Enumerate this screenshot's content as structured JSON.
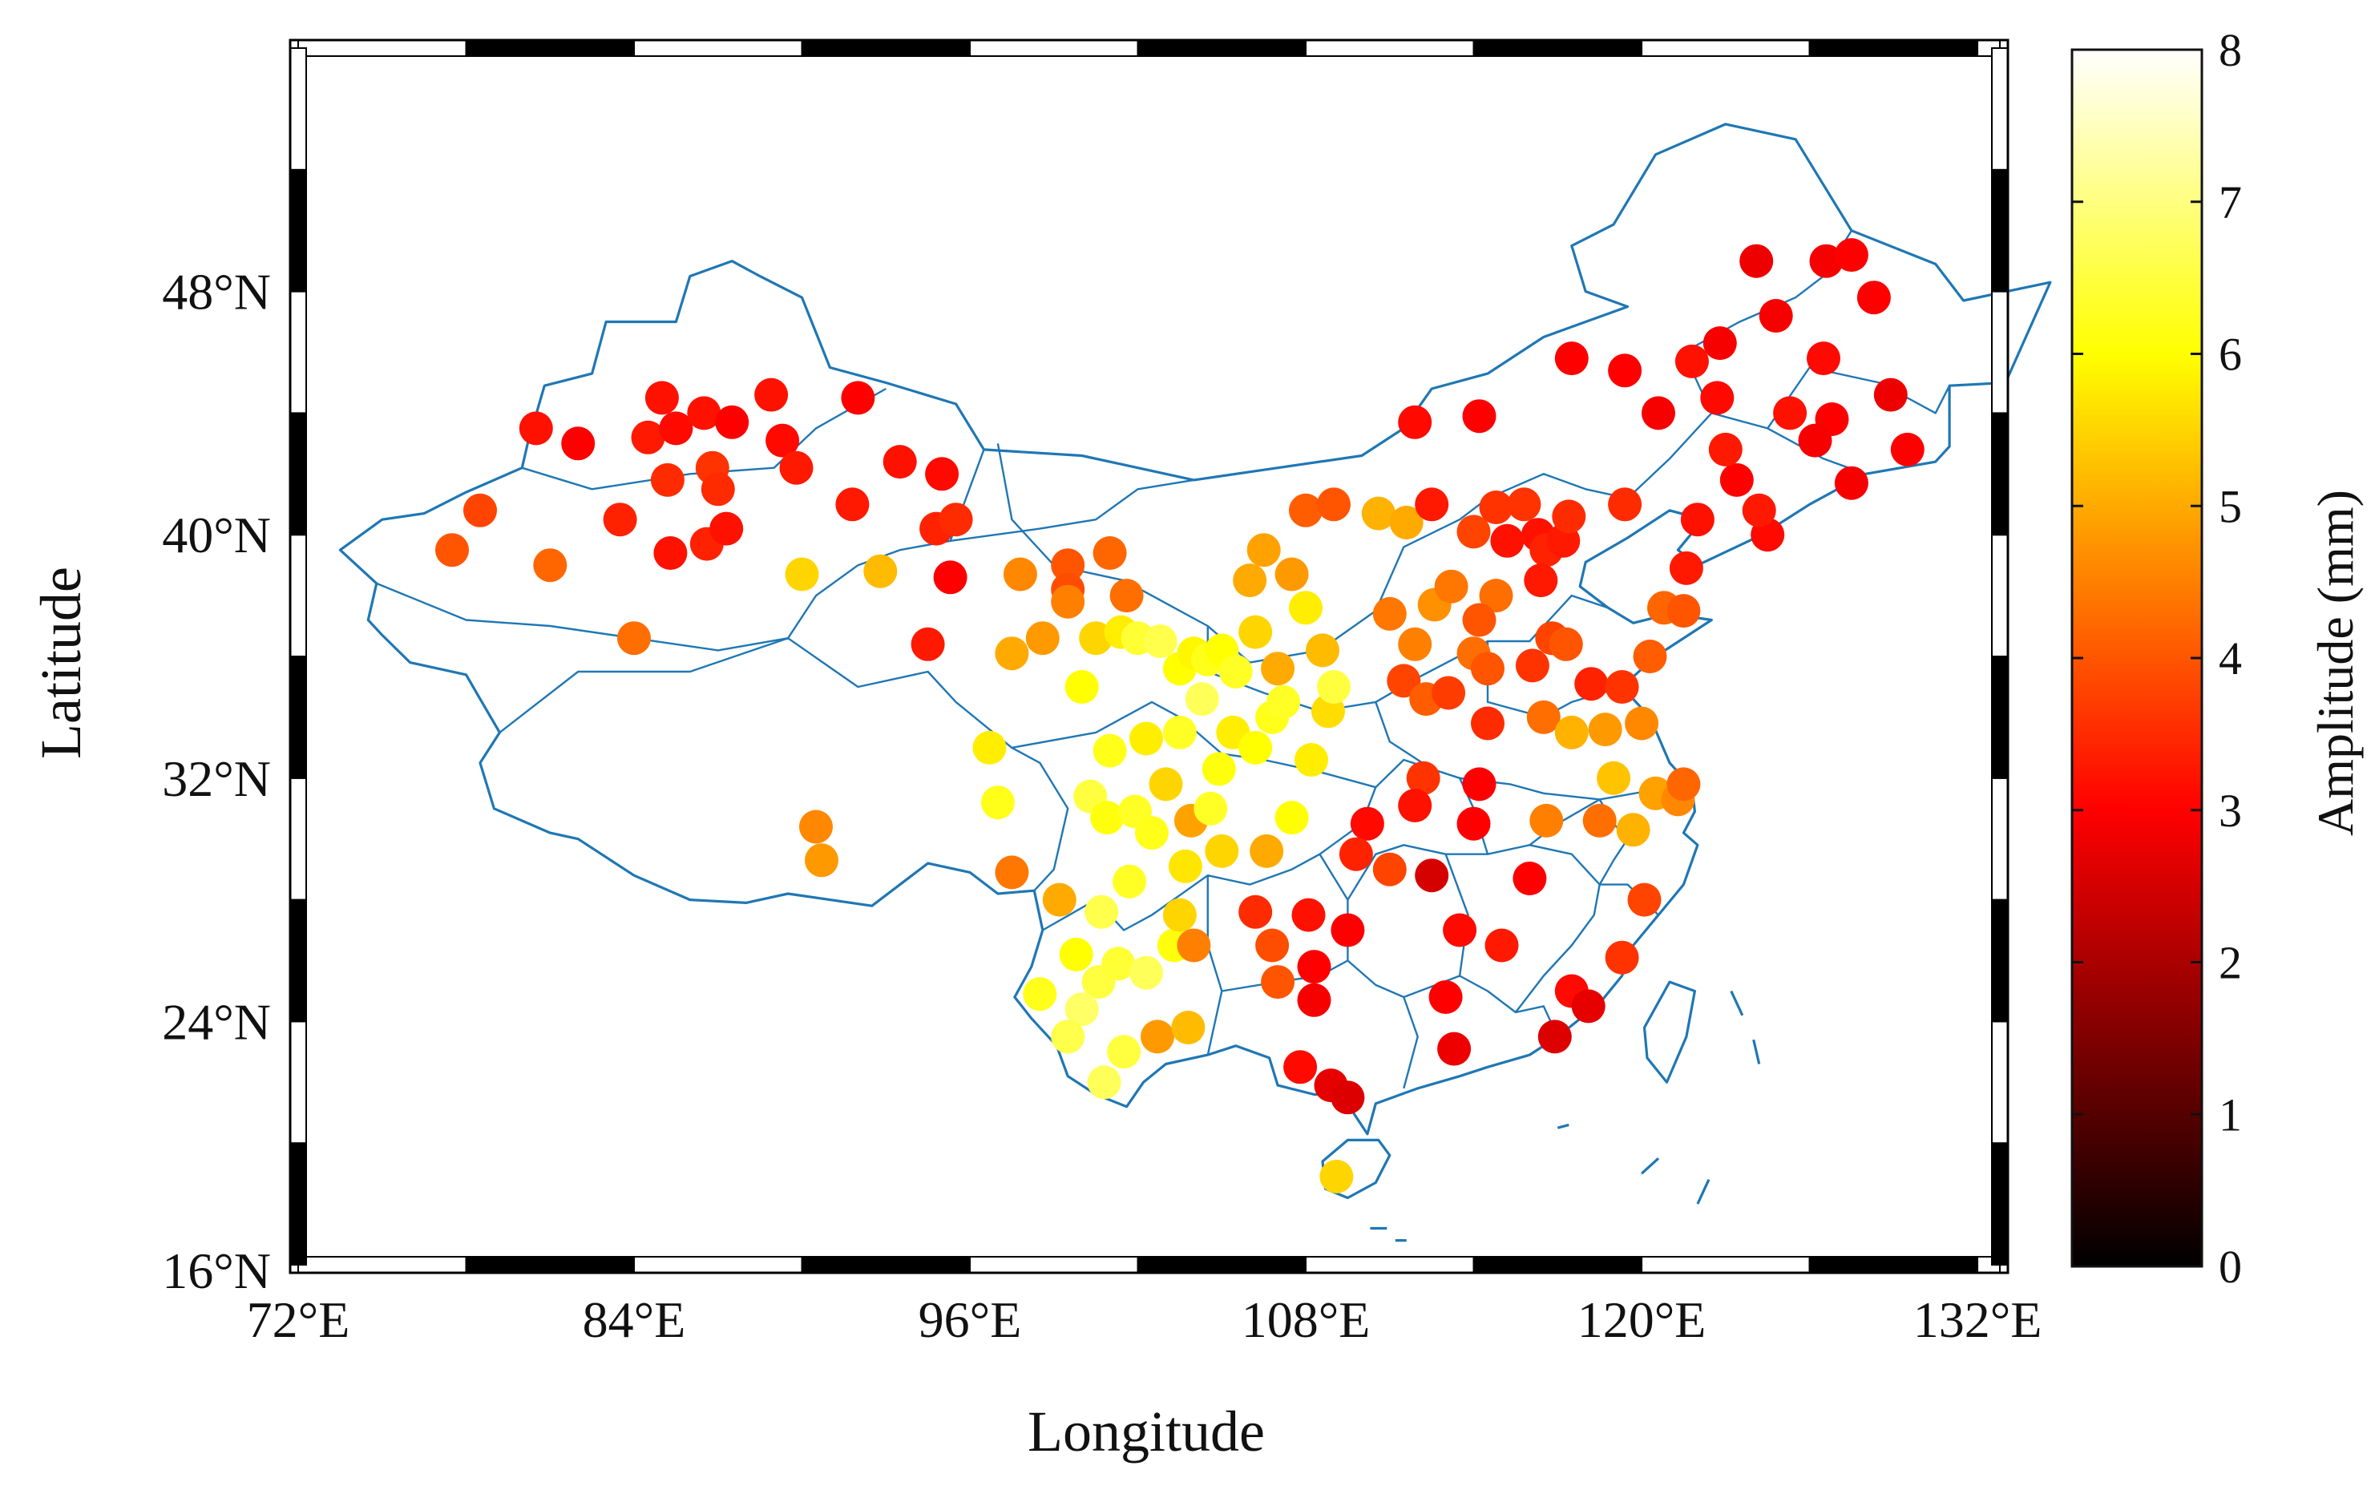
{
  "figure": {
    "xlabel": "Longitude",
    "ylabel": "Latitude",
    "colorbar_label": "Amplitude (mm)"
  },
  "map": {
    "lon_range": [
      72,
      136
    ],
    "lat_range": [
      16,
      56
    ],
    "lon_ticks": [
      {
        "value": 72,
        "label": "72°E"
      },
      {
        "value": 84,
        "label": "84°E"
      },
      {
        "value": 96,
        "label": "96°E"
      },
      {
        "value": 108,
        "label": "108°E"
      },
      {
        "value": 120,
        "label": "120°E"
      },
      {
        "value": 132,
        "label": "132°E"
      }
    ],
    "lat_ticks": [
      {
        "value": 16,
        "label": "16°N"
      },
      {
        "value": 24,
        "label": "24°N"
      },
      {
        "value": 32,
        "label": "32°N"
      },
      {
        "value": 40,
        "label": "40°N"
      },
      {
        "value": 48,
        "label": "48°N"
      }
    ],
    "border_color": "#1f77b4",
    "frame_style": "alternating black/white graduated border"
  },
  "colorbar": {
    "min": 0,
    "max": 8,
    "ticks": [
      {
        "value": 0,
        "label": "0"
      },
      {
        "value": 1,
        "label": "1"
      },
      {
        "value": 2,
        "label": "2"
      },
      {
        "value": 3,
        "label": "3"
      },
      {
        "value": 4,
        "label": "4"
      },
      {
        "value": 5,
        "label": "5"
      },
      {
        "value": 6,
        "label": "6"
      },
      {
        "value": 7,
        "label": "7"
      },
      {
        "value": 8,
        "label": "8"
      }
    ],
    "colormap": "hot (black-red-yellow-white)"
  },
  "chart_data": {
    "type": "scatter",
    "xlabel": "Longitude",
    "ylabel": "Latitude",
    "xlim": [
      72,
      136
    ],
    "ylim": [
      16,
      56
    ],
    "value_label": "Amplitude (mm)",
    "points": [
      [
        80.5,
        43.5,
        3.2
      ],
      [
        78.5,
        40.8,
        3.8
      ],
      [
        77.5,
        39.5,
        4.0
      ],
      [
        82.0,
        43.0,
        3.0
      ],
      [
        85.0,
        44.5,
        3.2
      ],
      [
        84.5,
        43.2,
        3.3
      ],
      [
        85.2,
        41.8,
        3.5
      ],
      [
        85.5,
        43.5,
        3.1
      ],
      [
        86.5,
        44.0,
        3.2
      ],
      [
        87.5,
        43.7,
        3.0
      ],
      [
        86.8,
        42.2,
        3.6
      ],
      [
        87.0,
        41.5,
        3.5
      ],
      [
        83.5,
        40.5,
        3.4
      ],
      [
        85.3,
        39.4,
        3.2
      ],
      [
        86.6,
        39.7,
        3.4
      ],
      [
        87.3,
        40.2,
        3.2
      ],
      [
        81.0,
        39.0,
        4.2
      ],
      [
        84.0,
        36.6,
        4.3
      ],
      [
        88.9,
        44.6,
        3.2
      ],
      [
        89.3,
        43.1,
        3.1
      ],
      [
        89.8,
        42.2,
        3.3
      ],
      [
        92.0,
        44.5,
        3.0
      ],
      [
        91.8,
        41.0,
        3.3
      ],
      [
        93.5,
        42.4,
        3.2
      ],
      [
        95.0,
        42.0,
        3.1
      ],
      [
        95.3,
        38.6,
        3.0
      ],
      [
        94.8,
        40.2,
        3.4
      ],
      [
        95.5,
        40.5,
        3.5
      ],
      [
        90.0,
        38.7,
        5.5
      ],
      [
        92.8,
        38.8,
        5.2
      ],
      [
        97.8,
        38.7,
        4.6
      ],
      [
        99.5,
        39.0,
        4.0
      ],
      [
        99.5,
        38.2,
        3.9
      ],
      [
        101.0,
        39.4,
        4.2
      ],
      [
        101.6,
        38.0,
        4.3
      ],
      [
        99.5,
        37.8,
        4.5
      ],
      [
        98.6,
        36.6,
        4.8
      ],
      [
        97.5,
        36.1,
        5.0
      ],
      [
        94.5,
        36.4,
        3.3
      ],
      [
        90.5,
        30.4,
        4.6
      ],
      [
        90.7,
        29.3,
        4.8
      ],
      [
        96.7,
        33.0,
        5.8
      ],
      [
        97.0,
        31.2,
        6.2
      ],
      [
        97.5,
        28.9,
        4.4
      ],
      [
        100.0,
        35.0,
        6.0
      ],
      [
        100.5,
        36.6,
        5.5
      ],
      [
        101.4,
        36.8,
        5.8
      ],
      [
        102.0,
        36.6,
        6.4
      ],
      [
        102.8,
        36.5,
        6.6
      ],
      [
        103.5,
        35.6,
        6.0
      ],
      [
        104.0,
        36.1,
        5.9
      ],
      [
        104.5,
        35.9,
        6.2
      ],
      [
        105.0,
        36.2,
        6.0
      ],
      [
        105.5,
        35.5,
        6.3
      ],
      [
        104.3,
        34.6,
        6.7
      ],
      [
        103.5,
        33.5,
        6.3
      ],
      [
        102.3,
        33.3,
        5.8
      ],
      [
        101.0,
        32.9,
        6.2
      ],
      [
        100.3,
        31.4,
        6.5
      ],
      [
        100.9,
        30.7,
        6.1
      ],
      [
        101.9,
        30.9,
        6.3
      ],
      [
        102.5,
        30.2,
        6.2
      ],
      [
        103.0,
        31.8,
        5.5
      ],
      [
        103.9,
        30.6,
        4.9
      ],
      [
        104.6,
        31.0,
        6.3
      ],
      [
        104.9,
        32.3,
        6.1
      ],
      [
        105.4,
        33.5,
        5.8
      ],
      [
        106.2,
        33.0,
        6.0
      ],
      [
        106.8,
        34.0,
        6.2
      ],
      [
        107.2,
        34.5,
        6.3
      ],
      [
        107.0,
        35.6,
        5.0
      ],
      [
        106.2,
        36.8,
        5.5
      ],
      [
        106.0,
        38.5,
        5.0
      ],
      [
        106.5,
        39.5,
        4.9
      ],
      [
        107.5,
        38.7,
        4.8
      ],
      [
        108.0,
        40.8,
        4.1
      ],
      [
        109.0,
        41.0,
        4.0
      ],
      [
        108.0,
        37.6,
        5.8
      ],
      [
        108.8,
        34.2,
        5.6
      ],
      [
        108.6,
        36.2,
        5.2
      ],
      [
        108.2,
        32.6,
        5.8
      ],
      [
        109.0,
        35.0,
        6.5
      ],
      [
        107.5,
        30.7,
        6.0
      ],
      [
        106.6,
        29.6,
        5.0
      ],
      [
        105.0,
        29.6,
        5.5
      ],
      [
        103.7,
        29.1,
        5.7
      ],
      [
        101.7,
        28.6,
        6.3
      ],
      [
        100.7,
        27.6,
        6.6
      ],
      [
        99.2,
        28.0,
        5.0
      ],
      [
        99.8,
        26.2,
        6.0
      ],
      [
        100.6,
        25.3,
        6.5
      ],
      [
        101.3,
        25.9,
        6.4
      ],
      [
        102.3,
        25.6,
        6.7
      ],
      [
        103.3,
        26.5,
        6.1
      ],
      [
        103.5,
        27.5,
        5.5
      ],
      [
        104.0,
        26.5,
        4.5
      ],
      [
        100.0,
        24.4,
        6.8
      ],
      [
        98.5,
        24.9,
        6.2
      ],
      [
        99.5,
        23.5,
        6.6
      ],
      [
        101.5,
        23.0,
        6.5
      ],
      [
        102.7,
        23.5,
        4.8
      ],
      [
        103.8,
        23.8,
        5.2
      ],
      [
        100.8,
        22.0,
        6.7
      ],
      [
        106.2,
        27.6,
        3.5
      ],
      [
        106.8,
        26.5,
        3.9
      ],
      [
        107.0,
        25.3,
        4.0
      ],
      [
        108.1,
        27.5,
        3.2
      ],
      [
        108.3,
        25.8,
        3.0
      ],
      [
        108.3,
        24.7,
        2.9
      ],
      [
        107.8,
        22.5,
        3.1
      ],
      [
        108.9,
        21.9,
        2.7
      ],
      [
        109.5,
        21.5,
        2.6
      ],
      [
        109.1,
        18.9,
        5.5
      ],
      [
        109.5,
        27.0,
        3.0
      ],
      [
        110.2,
        30.5,
        3.1
      ],
      [
        109.8,
        29.5,
        3.4
      ],
      [
        111.0,
        29.0,
        3.8
      ],
      [
        110.6,
        40.7,
        5.1
      ],
      [
        111.6,
        40.4,
        5.0
      ],
      [
        111.0,
        37.4,
        4.4
      ],
      [
        111.9,
        36.4,
        4.5
      ],
      [
        112.6,
        37.7,
        4.7
      ],
      [
        113.2,
        38.3,
        4.4
      ],
      [
        111.5,
        35.2,
        3.8
      ],
      [
        112.3,
        34.6,
        4.1
      ],
      [
        112.2,
        32.0,
        3.6
      ],
      [
        111.9,
        31.1,
        3.2
      ],
      [
        112.5,
        28.8,
        2.5
      ],
      [
        114.0,
        30.5,
        3.0
      ],
      [
        113.0,
        24.8,
        3.0
      ],
      [
        113.5,
        27.0,
        3.1
      ],
      [
        113.3,
        23.1,
        2.8
      ],
      [
        114.0,
        36.1,
        4.3
      ],
      [
        114.5,
        35.6,
        4.0
      ],
      [
        114.8,
        38.0,
        4.3
      ],
      [
        114.2,
        37.2,
        4.0
      ],
      [
        113.1,
        34.8,
        3.7
      ],
      [
        114.5,
        33.8,
        3.5
      ],
      [
        114.0,
        40.1,
        3.8
      ],
      [
        114.8,
        40.9,
        3.6
      ],
      [
        115.2,
        39.8,
        3.2
      ],
      [
        115.8,
        41.0,
        3.6
      ],
      [
        116.3,
        40.0,
        3.2
      ],
      [
        116.6,
        39.5,
        3.4
      ],
      [
        117.2,
        39.8,
        3.3
      ],
      [
        117.4,
        40.6,
        3.5
      ],
      [
        116.4,
        38.5,
        3.3
      ],
      [
        116.1,
        35.7,
        3.6
      ],
      [
        116.8,
        36.6,
        3.8
      ],
      [
        117.3,
        36.4,
        4.0
      ],
      [
        118.2,
        35.1,
        3.4
      ],
      [
        119.3,
        35.0,
        3.6
      ],
      [
        120.3,
        36.0,
        4.1
      ],
      [
        120.8,
        37.6,
        4.2
      ],
      [
        121.5,
        37.5,
        4.0
      ],
      [
        116.5,
        34.0,
        4.3
      ],
      [
        117.5,
        33.5,
        5.1
      ],
      [
        118.7,
        33.6,
        4.8
      ],
      [
        119.0,
        32.0,
        5.3
      ],
      [
        120.0,
        33.8,
        4.6
      ],
      [
        120.5,
        31.5,
        4.9
      ],
      [
        121.3,
        31.3,
        4.6
      ],
      [
        121.5,
        31.8,
        4.2
      ],
      [
        119.7,
        30.3,
        5.1
      ],
      [
        118.5,
        30.6,
        4.3
      ],
      [
        116.6,
        30.6,
        4.5
      ],
      [
        114.2,
        31.8,
        3.0
      ],
      [
        116.0,
        28.7,
        3.0
      ],
      [
        115.0,
        26.5,
        3.3
      ],
      [
        117.5,
        25.0,
        3.1
      ],
      [
        119.3,
        26.1,
        3.6
      ],
      [
        120.1,
        28.0,
        3.8
      ],
      [
        118.1,
        24.5,
        2.7
      ],
      [
        116.9,
        23.5,
        2.6
      ],
      [
        120.6,
        44.0,
        2.9
      ],
      [
        119.4,
        41.0,
        3.5
      ],
      [
        121.6,
        38.9,
        3.3
      ],
      [
        123.4,
        41.8,
        3.0
      ],
      [
        122.0,
        40.5,
        3.2
      ],
      [
        123.0,
        42.8,
        3.3
      ],
      [
        124.5,
        40.0,
        3.1
      ],
      [
        124.2,
        40.8,
        3.3
      ],
      [
        121.8,
        45.7,
        3.2
      ],
      [
        122.7,
        44.5,
        3.1
      ],
      [
        124.8,
        47.2,
        2.9
      ],
      [
        126.5,
        45.8,
        3.1
      ],
      [
        125.3,
        44.0,
        3.2
      ],
      [
        126.8,
        43.8,
        3.0
      ],
      [
        126.2,
        43.1,
        2.9
      ],
      [
        127.5,
        41.7,
        2.9
      ],
      [
        129.5,
        42.8,
        3.0
      ],
      [
        128.9,
        44.6,
        2.8
      ],
      [
        126.6,
        49.0,
        2.9
      ],
      [
        127.5,
        49.2,
        3.0
      ],
      [
        128.3,
        47.8,
        3.0
      ],
      [
        124.1,
        49.0,
        2.8
      ],
      [
        122.8,
        46.3,
        2.9
      ],
      [
        119.4,
        45.4,
        3.0
      ],
      [
        117.5,
        45.8,
        3.0
      ],
      [
        114.2,
        43.9,
        3.0
      ],
      [
        111.9,
        43.7,
        3.1
      ],
      [
        112.5,
        41.0,
        3.3
      ]
    ]
  }
}
